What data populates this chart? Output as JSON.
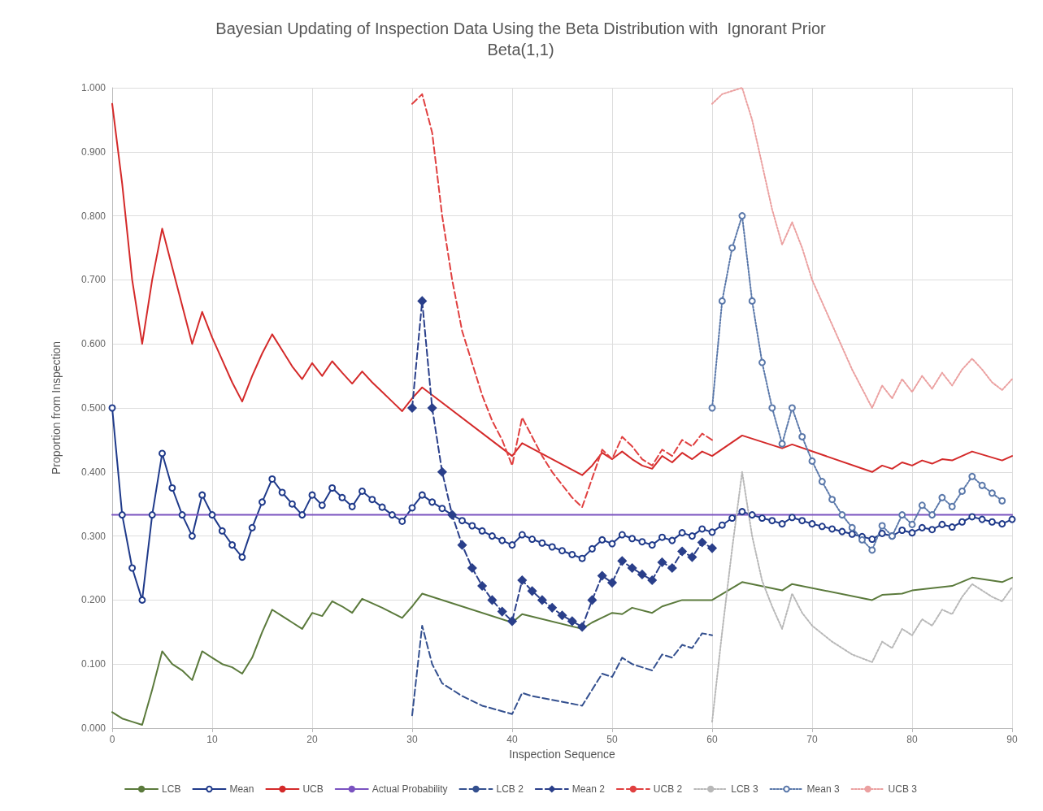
{
  "chart_data": {
    "type": "line",
    "title": "Bayesian Updating of Inspection Data Using the Beta Distribution with  Ignorant Prior",
    "subtitle": "Beta(1,1)",
    "xlabel": "Inspection Sequence",
    "ylabel": "Proportion from Inspection",
    "xlim": [
      0,
      90
    ],
    "xticks": [
      0,
      10,
      20,
      30,
      40,
      50,
      60,
      70,
      80,
      90
    ],
    "ylim": [
      0,
      1
    ],
    "yticks": [
      {
        "value": 0,
        "label": "0.000"
      },
      {
        "value": 0.1,
        "label": "0.100"
      },
      {
        "value": 0.2,
        "label": "0.200"
      },
      {
        "value": 0.3,
        "label": "0.300"
      },
      {
        "value": 0.4,
        "label": "0.400"
      },
      {
        "value": 0.5,
        "label": "0.500"
      },
      {
        "value": 0.6,
        "label": "0.600"
      },
      {
        "value": 0.7,
        "label": "0.700"
      },
      {
        "value": 0.8,
        "label": "0.800"
      },
      {
        "value": 0.9,
        "label": "0.900"
      },
      {
        "value": 1,
        "label": "1.000"
      }
    ],
    "grid": true,
    "legend": "bottom",
    "series": [
      {
        "name": "LCB",
        "color": "#5b7a3c",
        "marker": "none",
        "line_style": "solid",
        "x": [
          0,
          1,
          2,
          3,
          4,
          5,
          6,
          7,
          8,
          9,
          10,
          11,
          12,
          13,
          14,
          15,
          16,
          17,
          18,
          19,
          20,
          21,
          22,
          23,
          24,
          25,
          26,
          27,
          28,
          29,
          30,
          31,
          40,
          41,
          47,
          48,
          50,
          51,
          52,
          54,
          55,
          57,
          60,
          63,
          67,
          68,
          76,
          77,
          79,
          80,
          84,
          86,
          89,
          90
        ],
        "values": [
          0.025,
          0.015,
          0.01,
          0.005,
          0.06,
          0.12,
          0.1,
          0.09,
          0.075,
          0.12,
          0.11,
          0.1,
          0.095,
          0.085,
          0.11,
          0.15,
          0.185,
          0.175,
          0.165,
          0.155,
          0.18,
          0.175,
          0.198,
          0.19,
          0.18,
          0.202,
          0.195,
          0.188,
          0.18,
          0.172,
          0.19,
          0.21,
          0.165,
          0.178,
          0.155,
          0.165,
          0.18,
          0.178,
          0.188,
          0.18,
          0.19,
          0.2,
          0.2,
          0.228,
          0.215,
          0.225,
          0.2,
          0.208,
          0.21,
          0.215,
          0.222,
          0.235,
          0.228,
          0.235
        ]
      },
      {
        "name": "Mean",
        "color": "#1f3a8a",
        "marker": "circle",
        "line_style": "solid",
        "x": [
          0,
          1,
          2,
          3,
          4,
          5,
          6,
          7,
          8,
          9,
          10,
          11,
          12,
          13,
          14,
          15,
          16,
          17,
          18,
          19,
          20,
          21,
          22,
          23,
          24,
          25,
          26,
          27,
          28,
          29,
          30,
          31,
          32,
          33,
          34,
          35,
          36,
          37,
          38,
          39,
          40,
          41,
          42,
          43,
          44,
          45,
          46,
          47,
          48,
          49,
          50,
          51,
          52,
          53,
          54,
          55,
          56,
          57,
          58,
          59,
          60,
          61,
          62,
          63,
          64,
          65,
          66,
          67,
          68,
          69,
          70,
          71,
          72,
          73,
          74,
          75,
          76,
          77,
          78,
          79,
          80,
          81,
          82,
          83,
          84,
          85,
          86,
          87,
          88,
          89,
          90
        ],
        "values": [
          0.5,
          0.333,
          0.25,
          0.2,
          0.333,
          0.429,
          0.375,
          0.333,
          0.3,
          0.364,
          0.333,
          0.308,
          0.286,
          0.267,
          0.313,
          0.353,
          0.389,
          0.368,
          0.35,
          0.333,
          0.364,
          0.348,
          0.375,
          0.36,
          0.346,
          0.37,
          0.357,
          0.345,
          0.333,
          0.323,
          0.344,
          0.364,
          0.353,
          0.343,
          0.333,
          0.324,
          0.316,
          0.308,
          0.3,
          0.293,
          0.286,
          0.302,
          0.295,
          0.289,
          0.283,
          0.277,
          0.271,
          0.265,
          0.28,
          0.294,
          0.288,
          0.302,
          0.296,
          0.291,
          0.286,
          0.298,
          0.293,
          0.305,
          0.3,
          0.311,
          0.306,
          0.317,
          0.328,
          0.338,
          0.333,
          0.328,
          0.324,
          0.319,
          0.329,
          0.324,
          0.319,
          0.315,
          0.311,
          0.307,
          0.303,
          0.299,
          0.295,
          0.304,
          0.3,
          0.309,
          0.305,
          0.313,
          0.31,
          0.318,
          0.314,
          0.322,
          0.33,
          0.326,
          0.322,
          0.319,
          0.326
        ]
      },
      {
        "name": "UCB",
        "color": "#d42a2a",
        "marker": "none",
        "line_style": "solid",
        "x": [
          0,
          1,
          2,
          3,
          4,
          5,
          6,
          7,
          8,
          9,
          10,
          11,
          12,
          13,
          14,
          15,
          16,
          17,
          18,
          19,
          20,
          21,
          22,
          23,
          24,
          25,
          26,
          27,
          28,
          29,
          30,
          31,
          40,
          41,
          47,
          48,
          49,
          50,
          51,
          52,
          53,
          54,
          55,
          56,
          57,
          58,
          59,
          60,
          63,
          67,
          68,
          76,
          77,
          78,
          79,
          80,
          81,
          82,
          83,
          84,
          86,
          89,
          90
        ],
        "values": [
          0.975,
          0.85,
          0.7,
          0.6,
          0.7,
          0.78,
          0.72,
          0.66,
          0.6,
          0.65,
          0.61,
          0.575,
          0.54,
          0.51,
          0.55,
          0.585,
          0.615,
          0.59,
          0.565,
          0.545,
          0.57,
          0.55,
          0.573,
          0.555,
          0.538,
          0.557,
          0.54,
          0.525,
          0.51,
          0.495,
          0.515,
          0.532,
          0.425,
          0.445,
          0.395,
          0.41,
          0.43,
          0.42,
          0.432,
          0.42,
          0.41,
          0.405,
          0.425,
          0.415,
          0.43,
          0.42,
          0.432,
          0.425,
          0.457,
          0.437,
          0.443,
          0.4,
          0.41,
          0.405,
          0.415,
          0.41,
          0.418,
          0.413,
          0.42,
          0.418,
          0.432,
          0.418,
          0.425
        ]
      },
      {
        "name": "Actual Probability",
        "color": "#7a52c0",
        "marker": "none",
        "line_style": "solid",
        "x": [
          0,
          90
        ],
        "values": [
          0.333,
          0.333
        ]
      },
      {
        "name": "LCB 2",
        "color": "#34508f",
        "marker": "none",
        "line_style": "dashed",
        "x": [
          30,
          31,
          32,
          33,
          35,
          37,
          40,
          41,
          42,
          47,
          48,
          49,
          50,
          51,
          52,
          53,
          54,
          55,
          56,
          57,
          58,
          59,
          60
        ],
        "values": [
          0.02,
          0.16,
          0.1,
          0.07,
          0.05,
          0.035,
          0.022,
          0.055,
          0.05,
          0.035,
          0.06,
          0.085,
          0.08,
          0.11,
          0.1,
          0.095,
          0.09,
          0.115,
          0.11,
          0.13,
          0.125,
          0.148,
          0.145
        ]
      },
      {
        "name": "Mean 2",
        "color": "#2a3f8a",
        "marker": "diamond",
        "line_style": "dashed",
        "x": [
          30,
          31,
          32,
          33,
          34,
          35,
          36,
          37,
          38,
          39,
          40,
          41,
          42,
          43,
          44,
          45,
          46,
          47,
          48,
          49,
          50,
          51,
          52,
          53,
          54,
          55,
          56,
          57,
          58,
          59,
          60
        ],
        "values": [
          0.5,
          0.667,
          0.5,
          0.4,
          0.333,
          0.286,
          0.25,
          0.222,
          0.2,
          0.182,
          0.167,
          0.231,
          0.214,
          0.2,
          0.188,
          0.176,
          0.167,
          0.158,
          0.2,
          0.238,
          0.227,
          0.261,
          0.25,
          0.24,
          0.231,
          0.259,
          0.25,
          0.276,
          0.267,
          0.29,
          0.281
        ]
      },
      {
        "name": "UCB 2",
        "color": "#e04040",
        "marker": "none",
        "line_style": "dashed",
        "x": [
          30,
          31,
          32,
          33,
          34,
          35,
          36,
          37,
          38,
          39,
          40,
          41,
          42,
          43,
          44,
          45,
          46,
          47,
          48,
          49,
          50,
          51,
          52,
          53,
          54,
          55,
          56,
          57,
          58,
          59,
          60
        ],
        "values": [
          0.975,
          0.99,
          0.93,
          0.8,
          0.7,
          0.62,
          0.57,
          0.52,
          0.48,
          0.45,
          0.41,
          0.485,
          0.455,
          0.425,
          0.4,
          0.38,
          0.36,
          0.345,
          0.39,
          0.435,
          0.42,
          0.455,
          0.44,
          0.42,
          0.41,
          0.435,
          0.425,
          0.45,
          0.44,
          0.46,
          0.45
        ]
      },
      {
        "name": "LCB 3",
        "color": "#b8b8b8",
        "marker": "none",
        "line_style": "dotted",
        "x": [
          60,
          61,
          62,
          63,
          64,
          65,
          66,
          67,
          68,
          69,
          70,
          72,
          74,
          76,
          77,
          78,
          79,
          80,
          81,
          82,
          83,
          84,
          85,
          86,
          87,
          88,
          89,
          90
        ],
        "values": [
          0.01,
          0.15,
          0.28,
          0.4,
          0.3,
          0.23,
          0.19,
          0.155,
          0.21,
          0.18,
          0.16,
          0.135,
          0.115,
          0.103,
          0.135,
          0.125,
          0.155,
          0.145,
          0.17,
          0.16,
          0.185,
          0.178,
          0.205,
          0.225,
          0.215,
          0.205,
          0.198,
          0.22
        ]
      },
      {
        "name": "Mean 3",
        "color": "#5a78aa",
        "marker": "circle",
        "line_style": "dotted",
        "x": [
          60,
          61,
          62,
          63,
          64,
          65,
          66,
          67,
          68,
          69,
          70,
          71,
          72,
          73,
          74,
          75,
          76,
          77,
          78,
          79,
          80,
          81,
          82,
          83,
          84,
          85,
          86,
          87,
          88,
          89
        ],
        "values": [
          0.5,
          0.667,
          0.75,
          0.8,
          0.667,
          0.571,
          0.5,
          0.444,
          0.5,
          0.455,
          0.417,
          0.385,
          0.357,
          0.333,
          0.313,
          0.294,
          0.278,
          0.316,
          0.3,
          0.333,
          0.318,
          0.348,
          0.333,
          0.36,
          0.346,
          0.37,
          0.393,
          0.379,
          0.367,
          0.355
        ]
      },
      {
        "name": "UCB 3",
        "color": "#eba0a0",
        "marker": "none",
        "line_style": "dotted",
        "x": [
          60,
          61,
          62,
          63,
          64,
          65,
          66,
          67,
          68,
          69,
          70,
          72,
          74,
          76,
          77,
          78,
          79,
          80,
          81,
          82,
          83,
          84,
          85,
          86,
          87,
          88,
          89,
          90
        ],
        "values": [
          0.975,
          0.99,
          0.995,
          1,
          0.95,
          0.88,
          0.81,
          0.755,
          0.79,
          0.75,
          0.7,
          0.63,
          0.56,
          0.5,
          0.535,
          0.515,
          0.545,
          0.525,
          0.55,
          0.53,
          0.555,
          0.535,
          0.56,
          0.577,
          0.56,
          0.54,
          0.528,
          0.545
        ]
      }
    ]
  }
}
